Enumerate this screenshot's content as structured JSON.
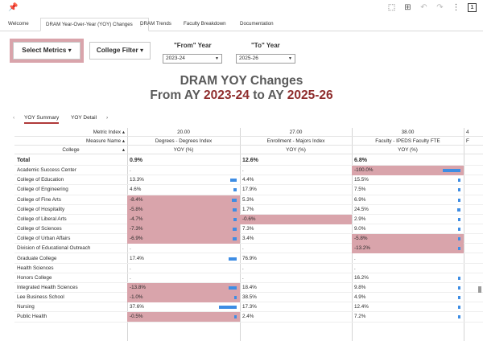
{
  "toolbar": {
    "pin_icon": "pin-icon",
    "icons": [
      "fit-icon",
      "grid-icon",
      "undo-icon",
      "redo-icon",
      "more-icon",
      "notification-icon"
    ],
    "badge_count": "1"
  },
  "tabs": [
    {
      "label": "Welcome"
    },
    {
      "label": "DRAM Year-Over-Year (YOY) Changes",
      "active": true
    },
    {
      "label": "DRAM Trends"
    },
    {
      "label": "Faculty Breakdown"
    },
    {
      "label": "Documentation"
    }
  ],
  "controls": {
    "select_metrics": "Select Metrics",
    "college_filter": "College Filter",
    "from_label": "\"From\" Year",
    "from_value": "2023-24",
    "to_label": "\"To\" Year",
    "to_value": "2025-26"
  },
  "title": {
    "line1": "DRAM YOY Changes",
    "line2_prefix": "From AY ",
    "from_year": "2023-24",
    "line2_mid": " to AY ",
    "to_year": "2025-26"
  },
  "subtabs": [
    "YOY Summary",
    "YOY Detail"
  ],
  "table": {
    "header_labels": {
      "metric_index": "Metric Index",
      "measure_name": "Measure Name",
      "college": "College"
    },
    "columns": [
      {
        "metric_index": "20.00",
        "measure": "Degrees - Degrees Index",
        "sub": "YOY (%)"
      },
      {
        "metric_index": "27.00",
        "measure": "Enrollment - Majors Index",
        "sub": "YOY (%)"
      },
      {
        "metric_index": "38.00",
        "measure": "Faculty - IPEDS Faculty FTE",
        "sub": "YOY (%)"
      }
    ],
    "rows": [
      {
        "college": "Total",
        "values": [
          "0.9%",
          "12.6%",
          "6.8%"
        ],
        "bars": [
          0,
          0,
          0
        ],
        "total": true
      },
      {
        "college": "Academic Success Center",
        "values": [
          ".",
          ".",
          "-100.0%"
        ],
        "bars": [
          0,
          0,
          0.55
        ]
      },
      {
        "college": "College of Education",
        "values": [
          "13.3%",
          "4.4%",
          "15.5%"
        ],
        "bars": [
          0.2,
          0,
          0.06
        ]
      },
      {
        "college": "College of Engineering",
        "values": [
          "4.6%",
          "17.9%",
          "7.5%"
        ],
        "bars": [
          0.1,
          0,
          0.04
        ]
      },
      {
        "college": "College of Fine Arts",
        "values": [
          "-8.4%",
          "5.3%",
          "6.9%"
        ],
        "bars": [
          0.15,
          0,
          0.04
        ]
      },
      {
        "college": "College of Hospitality",
        "values": [
          "-5.8%",
          "1.7%",
          "24.5%"
        ],
        "bars": [
          0.12,
          0,
          0.1
        ]
      },
      {
        "college": "College of Liberal Arts",
        "values": [
          "-4.7%",
          "-0.6%",
          "2.9%"
        ],
        "bars": [
          0.1,
          0,
          0.02
        ]
      },
      {
        "college": "College of Sciences",
        "values": [
          "-7.3%",
          "7.3%",
          "9.0%"
        ],
        "bars": [
          0.13,
          0,
          0.04
        ]
      },
      {
        "college": "College of Urban Affairs",
        "values": [
          "-6.9%",
          "3.4%",
          "-5.8%"
        ],
        "bars": [
          0.13,
          0,
          0.04
        ]
      },
      {
        "college": "Division of Educational Outreach",
        "values": [
          ".",
          ".",
          "-13.2%"
        ],
        "bars": [
          0,
          0,
          0.07
        ]
      },
      {
        "college": "Graduate College",
        "values": [
          "17.4%",
          "76.9%",
          "."
        ],
        "bars": [
          0.25,
          0,
          0
        ]
      },
      {
        "college": "Health Sciences",
        "values": [
          ".",
          ".",
          "."
        ],
        "bars": [
          0,
          0,
          0
        ]
      },
      {
        "college": "Honors College",
        "values": [
          ".",
          ".",
          "16.2%"
        ],
        "bars": [
          0,
          0,
          0.07
        ]
      },
      {
        "college": "Integrated Health Sciences",
        "values": [
          "-13.8%",
          "18.4%",
          "9.8%"
        ],
        "bars": [
          0.25,
          0,
          0.05
        ]
      },
      {
        "college": "Lee Business School",
        "values": [
          "-1.0%",
          "38.5%",
          "4.9%"
        ],
        "bars": [
          0.03,
          0,
          0.03
        ]
      },
      {
        "college": "Nursing",
        "values": [
          "37.6%",
          "17.3%",
          "12.4%"
        ],
        "bars": [
          0.55,
          0,
          0.06
        ]
      },
      {
        "college": "Public Health",
        "values": [
          "-0.5%",
          "2.4%",
          "7.2%"
        ],
        "bars": [
          0.02,
          0,
          0.04
        ]
      }
    ]
  },
  "colors": {
    "negative_fill": "#d9a4ab",
    "bar": "#3e8de4",
    "accent_year": "#8f2d2d"
  }
}
